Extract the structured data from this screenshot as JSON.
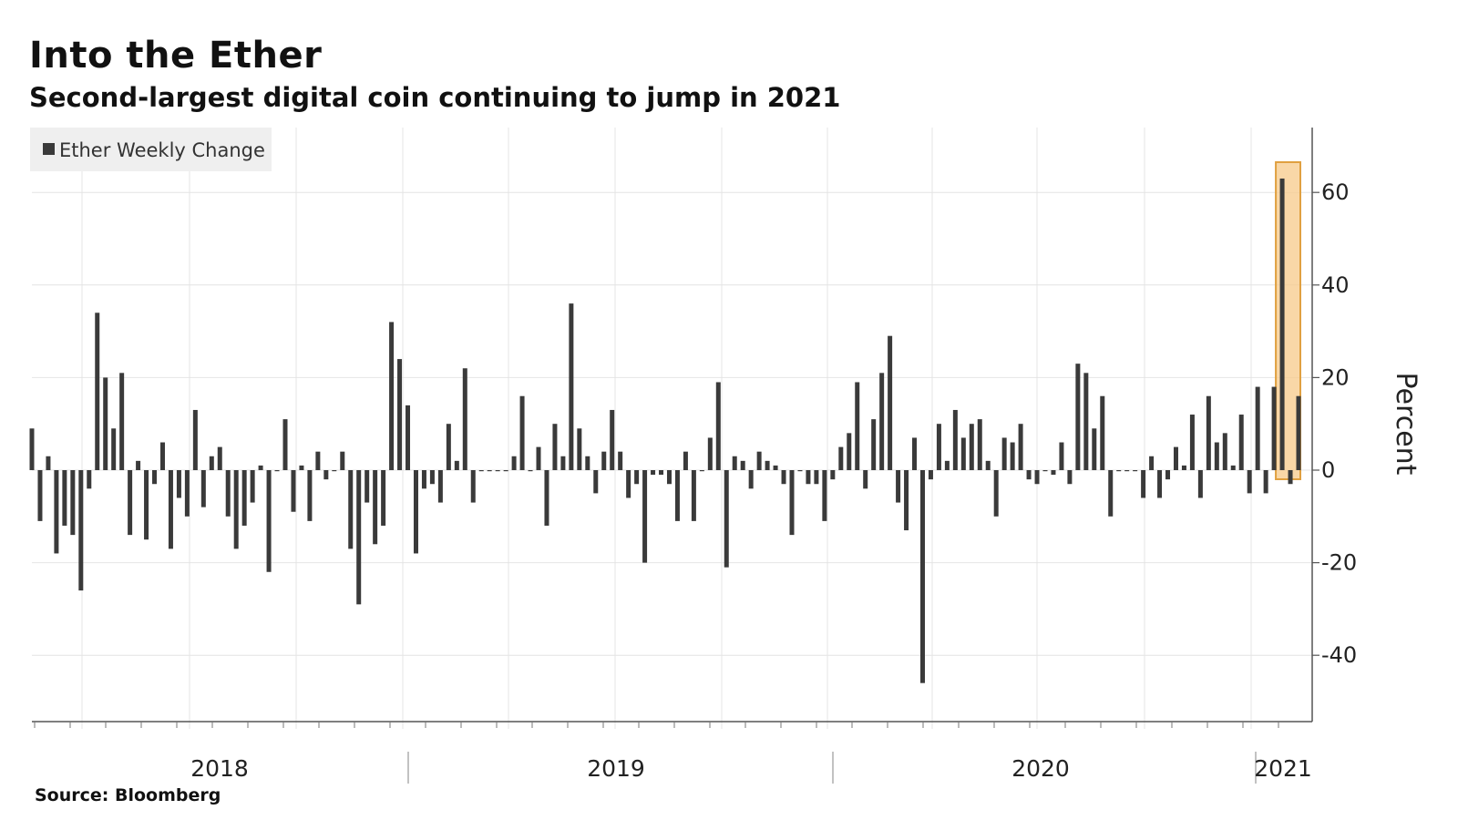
{
  "header": {
    "title": "Into the Ether",
    "subtitle": "Second-largest digital coin continuing to jump in 2021"
  },
  "footer": {
    "source": "Source: Bloomberg"
  },
  "colors": {
    "bar": "#3a3a3a",
    "highlight_fill": "#f7c98a",
    "highlight_stroke": "#e0a040",
    "grid": "#e4e4e4",
    "legend_bg": "#efefef"
  },
  "chart_data": {
    "type": "bar",
    "title": "Into the Ether",
    "subtitle": "Second-largest digital coin continuing to jump in 2021",
    "ylabel": "Percent",
    "xlabel": "",
    "ylim": [
      -52,
      75
    ],
    "yticks": [
      -40,
      -20,
      0,
      20,
      40,
      60
    ],
    "ytick_labels": [
      "-40",
      "-20",
      "0",
      "20",
      "40",
      "60"
    ],
    "legend": "top-left",
    "grid": true,
    "x_period_labels": [
      "2018",
      "2019",
      "2020",
      "2021"
    ],
    "series": [
      {
        "name": "Ether Weekly Change",
        "values": [
          9,
          -11,
          3,
          -18,
          -12,
          -14,
          -26,
          -4,
          34,
          20,
          9,
          21,
          -14,
          2,
          -15,
          -3,
          6,
          -17,
          -6,
          -10,
          13,
          -8,
          3,
          5,
          -10,
          -17,
          -12,
          -7,
          1,
          -22,
          0,
          11,
          -9,
          1,
          -11,
          4,
          -2,
          0,
          4,
          -17,
          -29,
          -7,
          -16,
          -12,
          32,
          24,
          14,
          -18,
          -4,
          -3,
          -7,
          10,
          2,
          22,
          -7,
          0,
          0,
          0,
          0,
          3,
          16,
          0,
          5,
          -12,
          10,
          3,
          36,
          9,
          3,
          -5,
          4,
          13,
          4,
          -6,
          -3,
          -20,
          -1,
          -1,
          -3,
          -11,
          4,
          -11,
          0,
          7,
          19,
          -21,
          3,
          2,
          -4,
          4,
          2,
          1,
          -3,
          -14,
          0,
          -3,
          -3,
          -11,
          -2,
          5,
          8,
          19,
          -4,
          11,
          21,
          29,
          -7,
          -13,
          7,
          -46,
          -2,
          10,
          2,
          13,
          7,
          10,
          11,
          2,
          -10,
          7,
          6,
          10,
          -2,
          -3,
          0,
          -1,
          6,
          -3,
          23,
          21,
          9,
          16,
          -10,
          0,
          0,
          0,
          -6,
          3,
          -6,
          -2,
          5,
          1,
          12,
          -6,
          16,
          6,
          8,
          1,
          12,
          -5,
          18,
          -5,
          18,
          63,
          -3,
          16
        ]
      }
    ],
    "highlight_period": "2021"
  }
}
